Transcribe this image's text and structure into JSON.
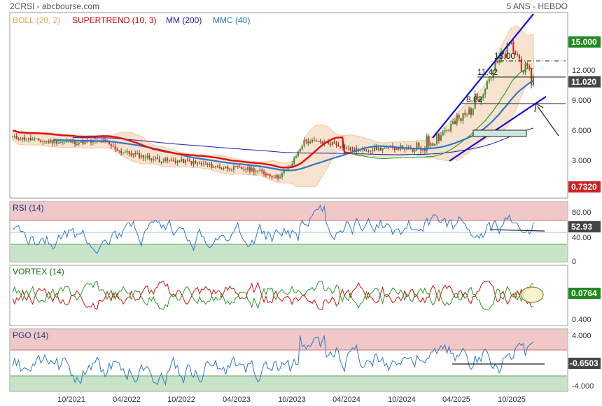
{
  "header": {
    "left": "2CRSI - abcbourse.com",
    "right": "5 ANS - HEBDO"
  },
  "legend": [
    {
      "label": "BOLL (20, 2)",
      "color": "#f0a050"
    },
    {
      "label": "SUPERTREND (10, 3)",
      "color": "#cc0000"
    },
    {
      "label": "MM (200)",
      "color": "#1a1aaa"
    },
    {
      "label": "MMC (40)",
      "color": "#2277cc"
    }
  ],
  "colors": {
    "price": "#2f8f2f",
    "down": "#cc2222",
    "boll": "#f2c89a",
    "bollfill": "#f7e3cf",
    "supertrend_up": "#2aa02a",
    "supertrend_down": "#dd1111",
    "mm200": "#1a1aaa",
    "mmc40": "#2f78c8",
    "trendline": "#1010dd",
    "rsi": "#2f78c8",
    "vortex_plus": "#2a9a2a",
    "vortex_minus": "#cc1111",
    "pgo": "#2f78c8",
    "zone_red": "#f0c8c8",
    "zone_green": "#c8e4c8",
    "badge_green": "#1e8a1e",
    "badge_red": "#cc2222",
    "badge_gray": "#444444"
  },
  "price_axis": {
    "ticks": [
      "12.000",
      "9.000",
      "6.000",
      "3.000"
    ]
  },
  "badges": {
    "top": "15.000",
    "last": "11.020",
    "low": "0.7320"
  },
  "annotations": {
    "level_13": "13.00",
    "level_1142": "11.42",
    "level_882": "8.82"
  },
  "rsi": {
    "title": "RSI (14)",
    "ticks": [
      "80.00",
      "40.00",
      "0"
    ],
    "value": "52.93"
  },
  "vortex": {
    "title": "VORTEX (14)",
    "ticks": [
      "0.400"
    ],
    "value": "0.0764"
  },
  "pgo": {
    "title": "PGO (14)",
    "ticks": [
      "4.000",
      "-4.000"
    ],
    "value": "-0.6503"
  },
  "dates": [
    "10/2021",
    "04/2022",
    "10/2022",
    "04/2023",
    "10/2023",
    "04/2024",
    "10/2024",
    "04/2025",
    "10/2025"
  ],
  "chart_data": {
    "type": "line",
    "title": "2CRSI - abcbourse.com",
    "period": "5 ANS - HEBDO",
    "x": [
      "10/2021",
      "04/2022",
      "10/2022",
      "04/2023",
      "10/2023",
      "04/2024",
      "10/2024",
      "04/2025",
      "10/2025"
    ],
    "series": [
      {
        "name": "2CRSI",
        "values": [
          4.9,
          4.6,
          3.1,
          2.3,
          1.5,
          4.9,
          4.3,
          4.8,
          11.0
        ]
      },
      {
        "name": "SUPERTREND (10, 3)",
        "values": [
          4.8,
          4.6,
          3.6,
          2.7,
          2.0,
          3.3,
          4.1,
          4.2,
          8.7
        ]
      },
      {
        "name": "MM (200)",
        "values": [
          4.4,
          4.4,
          4.2,
          3.8,
          3.3,
          3.2,
          3.3,
          3.6,
          4.0
        ]
      },
      {
        "name": "MMC (40)",
        "values": [
          4.8,
          4.6,
          3.9,
          3.0,
          2.4,
          3.8,
          4.4,
          4.3,
          8.6
        ]
      }
    ],
    "ylim": [
      0,
      15.6
    ],
    "panels": [
      {
        "name": "RSI (14)",
        "last": 52.93,
        "ylim": [
          0,
          100
        ],
        "zones": [
          70,
          30
        ]
      },
      {
        "name": "VORTEX (14)",
        "last": 0.0764
      },
      {
        "name": "PGO (14)",
        "last": -0.6503,
        "ylim": [
          -5,
          5
        ]
      }
    ]
  }
}
